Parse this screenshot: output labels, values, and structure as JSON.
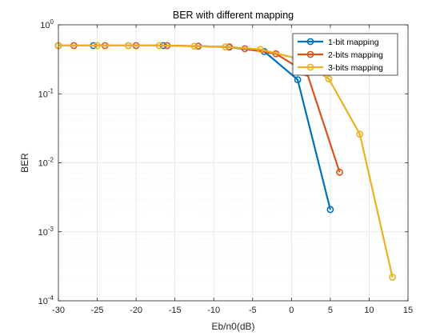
{
  "chart_data": {
    "type": "line",
    "title": "BER with different mapping",
    "xlabel": "Eb/n0(dB)",
    "ylabel": "BER",
    "xlim": [
      -30,
      15
    ],
    "ylim": [
      0.0001,
      1
    ],
    "yscale": "log",
    "grid": true,
    "minor_grid": true,
    "legend_position": "top-right",
    "x_ticks": [
      -30,
      -25,
      -20,
      -15,
      -10,
      -5,
      0,
      5,
      10,
      15
    ],
    "x_tick_labels": [
      "-30",
      "-25",
      "-20",
      "-15",
      "-10",
      "-5",
      "0",
      "5",
      "10",
      "15"
    ],
    "y_ticks": [
      0.0001,
      0.001,
      0.01,
      0.1,
      1
    ],
    "y_tick_labels": [
      {
        "base": "10",
        "exp": "-4"
      },
      {
        "base": "10",
        "exp": "-3"
      },
      {
        "base": "10",
        "exp": "-2"
      },
      {
        "base": "10",
        "exp": "-1"
      },
      {
        "base": "10",
        "exp": "0"
      }
    ],
    "series": [
      {
        "name": "1-bit mapping",
        "color": "#0072BD",
        "x": [
          -30,
          -25.5,
          -21,
          -16.5,
          -12,
          -8,
          -3.5,
          0.8,
          5
        ],
        "y": [
          0.5,
          0.5,
          0.5,
          0.5,
          0.49,
          0.475,
          0.41,
          0.16,
          0.0021
        ]
      },
      {
        "name": "2-bits mapping",
        "color": "#D95319",
        "x": [
          -30,
          -28,
          -24,
          -20,
          -16,
          -12,
          -8,
          -6,
          -2,
          2,
          6.2
        ],
        "y": [
          0.5,
          0.5,
          0.5,
          0.5,
          0.5,
          0.49,
          0.48,
          0.45,
          0.38,
          0.2,
          0.0073
        ]
      },
      {
        "name": "3-bits mapping",
        "color": "#EDB120",
        "x": [
          -30,
          -25,
          -21,
          -17,
          -12.5,
          -8.5,
          -4,
          0.5,
          4.8,
          8.8,
          13
        ],
        "y": [
          0.5,
          0.5,
          0.5,
          0.5,
          0.49,
          0.48,
          0.44,
          0.33,
          0.165,
          0.026,
          0.00022
        ]
      }
    ]
  }
}
